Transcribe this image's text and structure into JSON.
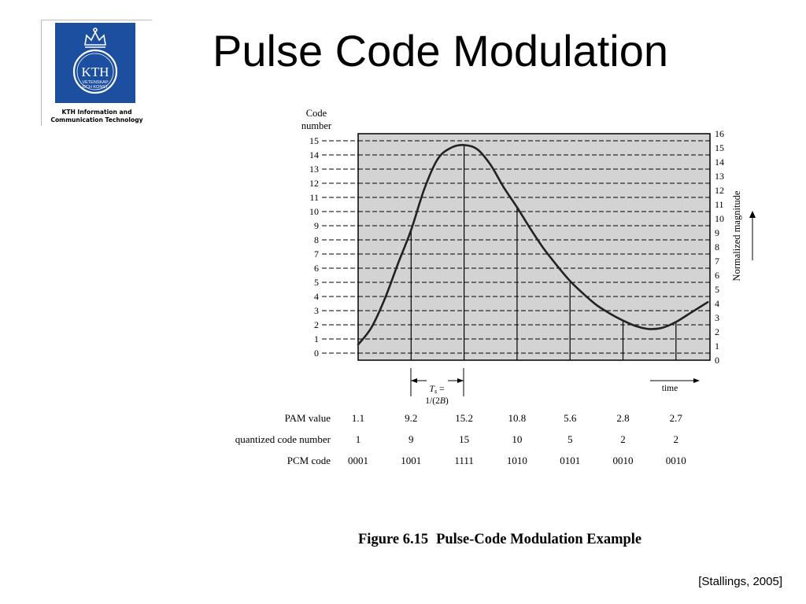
{
  "slide": {
    "title": "Pulse Code Modulation",
    "citation": "[Stallings, 2005]"
  },
  "logo": {
    "wordmark": "KTH",
    "motto_line1": "VETENSKAP",
    "motto_line2": "OCH KONST",
    "caption_line1": "KTH Information and",
    "caption_line2": "Communication Technology",
    "color": "#1d4fa1",
    "icon": "kth-crown-logo-icon"
  },
  "figure": {
    "caption_number": "Figure 6.15",
    "caption_title": "Pulse-Code Modulation Example"
  },
  "chart_data": {
    "type": "line",
    "left_axis_title_line1": "Code",
    "left_axis_title_line2": "number",
    "right_axis_label": "Normalized magnitude",
    "left_ticks": [
      "0",
      "1",
      "2",
      "3",
      "4",
      "5",
      "6",
      "7",
      "8",
      "9",
      "10",
      "11",
      "12",
      "13",
      "14",
      "15"
    ],
    "right_ticks": [
      "0",
      "1",
      "2",
      "3",
      "4",
      "5",
      "6",
      "7",
      "8",
      "9",
      "10",
      "11",
      "12",
      "13",
      "14",
      "15",
      "16"
    ],
    "ylim": [
      0,
      16
    ],
    "grid": true,
    "curve": {
      "x": [
        0,
        0.25,
        0.5,
        0.75,
        1.0,
        1.25,
        1.5,
        1.75,
        2.0,
        2.25,
        2.5,
        2.75,
        3.0,
        3.25,
        3.5,
        3.75,
        4.0,
        4.25,
        4.5,
        4.75,
        5.0,
        5.25,
        5.5,
        5.75,
        6.0,
        6.3,
        6.6
      ],
      "y": [
        1.1,
        2.3,
        4.3,
        6.8,
        9.2,
        12.1,
        14.2,
        15.0,
        15.2,
        14.9,
        13.8,
        12.2,
        10.8,
        9.3,
        7.9,
        6.7,
        5.6,
        4.7,
        3.9,
        3.3,
        2.8,
        2.4,
        2.2,
        2.3,
        2.7,
        3.4,
        4.1
      ]
    },
    "sample_times": [
      0,
      1,
      2,
      3,
      4,
      5,
      6
    ],
    "sample_interval_line1": "T",
    "sample_interval_sub": "s",
    "sample_interval_eq": " =",
    "sample_interval_line2a": "1/(2",
    "sample_interval_line2b": "B",
    "sample_interval_line2c": ")",
    "time_label": "time",
    "table": {
      "row_labels": [
        "PAM value",
        "quantized code number",
        "PCM code"
      ],
      "pam_values": [
        "1.1",
        "9.2",
        "15.2",
        "10.8",
        "5.6",
        "2.8",
        "2.7"
      ],
      "quantized_codes": [
        "1",
        "9",
        "15",
        "10",
        "5",
        "2",
        "2"
      ],
      "pcm_codes": [
        "0001",
        "1001",
        "1111",
        "1010",
        "0101",
        "0010",
        "0010"
      ]
    },
    "colors": {
      "plot_background": "#d3d3d3",
      "grid": "#000000",
      "curve": "#222222"
    }
  }
}
